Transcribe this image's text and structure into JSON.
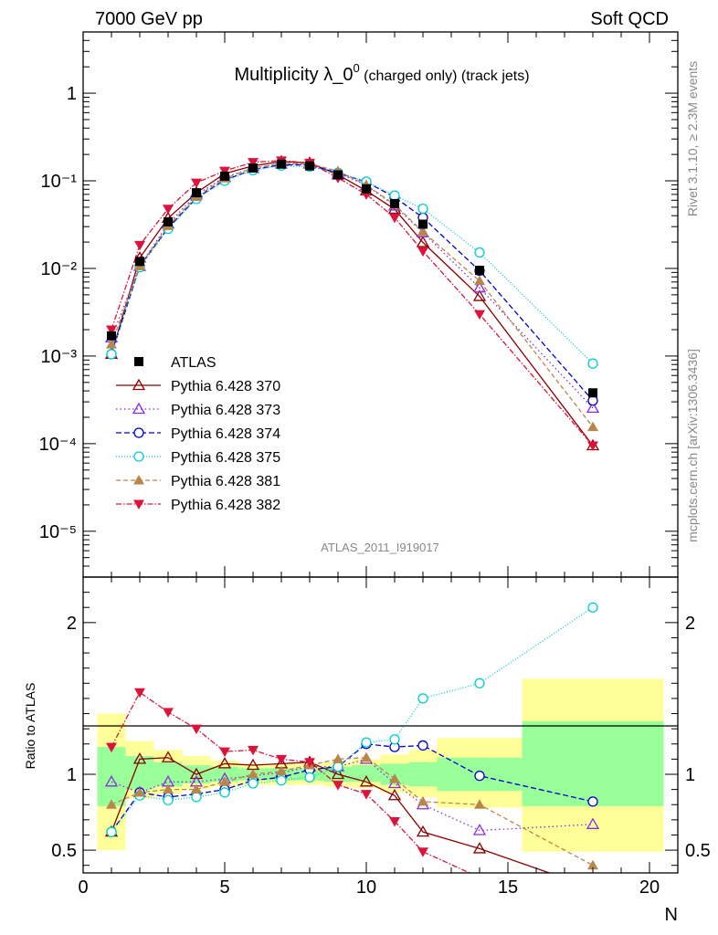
{
  "header": {
    "left": "7000 GeV pp",
    "right": "Soft QCD"
  },
  "side": {
    "rivet": "Rivet 3.1.10, ≥ 2.3M events",
    "mcplots": "mcplots.cern.ch [arXiv:1306.3436]"
  },
  "chart_data": {
    "type": "line",
    "title_main": "Multiplicity λ_0",
    "title_sup": "0",
    "title_sub": " (charged only) (track jets)",
    "analysis_label": "ATLAS_2011_I919017",
    "xlabel": "N",
    "ylabel_ratio": "Ratio to ATLAS",
    "xlim": [
      0,
      21
    ],
    "ylim_main": [
      3e-06,
      5
    ],
    "yscale_main": "log",
    "ylim_ratio": [
      0.35,
      2.3
    ],
    "x_ticks": [
      "0",
      "5",
      "10",
      "15",
      "20"
    ],
    "y_ticks_main": [
      "10⁻⁵",
      "10⁻⁴",
      "10⁻³",
      "10⁻²",
      "10⁻¹",
      "1"
    ],
    "y_ticks_ratio": [
      "0.5",
      "1",
      "2"
    ],
    "legend_position": "middle-left",
    "x": [
      1,
      2,
      3,
      4,
      5,
      6,
      7,
      8,
      9,
      10,
      11,
      12,
      14,
      18
    ],
    "data": {
      "name": "ATLAS",
      "values": [
        0.0017,
        0.012,
        0.034,
        0.073,
        0.113,
        0.14,
        0.155,
        0.148,
        0.117,
        0.081,
        0.055,
        0.032,
        0.0095,
        0.00038
      ]
    },
    "band_bins": [
      {
        "x0": 0.5,
        "x1": 1.5,
        "inner": [
          0.79,
          1.18
        ],
        "outer": [
          0.5,
          1.4
        ]
      },
      {
        "x0": 1.5,
        "x1": 2.5,
        "inner": [
          0.9,
          1.12
        ],
        "outer": [
          0.84,
          1.22
        ]
      },
      {
        "x0": 2.5,
        "x1": 3.5,
        "inner": [
          0.92,
          1.08
        ],
        "outer": [
          0.87,
          1.16
        ]
      },
      {
        "x0": 3.5,
        "x1": 4.5,
        "inner": [
          0.94,
          1.06
        ],
        "outer": [
          0.9,
          1.12
        ]
      },
      {
        "x0": 4.5,
        "x1": 5.5,
        "inner": [
          0.95,
          1.05
        ],
        "outer": [
          0.92,
          1.09
        ]
      },
      {
        "x0": 5.5,
        "x1": 6.5,
        "inner": [
          0.96,
          1.04
        ],
        "outer": [
          0.93,
          1.07
        ]
      },
      {
        "x0": 6.5,
        "x1": 7.5,
        "inner": [
          0.96,
          1.04
        ],
        "outer": [
          0.93,
          1.07
        ]
      },
      {
        "x0": 7.5,
        "x1": 8.5,
        "inner": [
          0.96,
          1.04
        ],
        "outer": [
          0.93,
          1.07
        ]
      },
      {
        "x0": 8.5,
        "x1": 9.5,
        "inner": [
          0.95,
          1.05
        ],
        "outer": [
          0.92,
          1.08
        ]
      },
      {
        "x0": 9.5,
        "x1": 10.5,
        "inner": [
          0.95,
          1.06
        ],
        "outer": [
          0.91,
          1.1
        ]
      },
      {
        "x0": 10.5,
        "x1": 11.5,
        "inner": [
          0.93,
          1.07
        ],
        "outer": [
          0.88,
          1.13
        ]
      },
      {
        "x0": 11.5,
        "x1": 12.5,
        "inner": [
          0.92,
          1.08
        ],
        "outer": [
          0.85,
          1.16
        ]
      },
      {
        "x0": 12.5,
        "x1": 15.5,
        "inner": [
          0.89,
          1.11
        ],
        "outer": [
          0.78,
          1.24
        ]
      },
      {
        "x0": 15.5,
        "x1": 20.5,
        "inner": [
          0.79,
          1.35
        ],
        "outer": [
          0.49,
          1.63
        ]
      }
    ],
    "series": [
      {
        "name": "Pythia 6.428 370",
        "color": "#8b0000",
        "dash": "",
        "marker": "triangle-open",
        "values": [
          0.00105,
          0.0132,
          0.0374,
          0.073,
          0.121,
          0.148,
          0.166,
          0.16,
          0.117,
          0.077,
          0.0475,
          0.0198,
          0.0048,
          9.5e-05
        ],
        "ratio": [
          0.62,
          1.1,
          1.11,
          1.0,
          1.07,
          1.06,
          1.07,
          1.08,
          1.0,
          0.95,
          0.86,
          0.62,
          0.51,
          0.25
        ]
      },
      {
        "name": "Pythia 6.428 373",
        "color": "#8a2be2",
        "dash": "1.5 3",
        "marker": "triangle-open",
        "values": [
          0.00162,
          0.0106,
          0.0323,
          0.0693,
          0.11,
          0.139,
          0.156,
          0.155,
          0.123,
          0.089,
          0.0518,
          0.0256,
          0.006,
          0.000255
        ],
        "ratio": [
          0.95,
          0.88,
          0.95,
          0.95,
          0.97,
          0.99,
          1.01,
          1.05,
          1.05,
          1.1,
          0.94,
          0.8,
          0.63,
          0.67
        ]
      },
      {
        "name": "Pythia 6.428 374",
        "color": "#0000cd",
        "dash": "6 3",
        "marker": "circle-open",
        "values": [
          0.00105,
          0.0106,
          0.0289,
          0.0635,
          0.102,
          0.134,
          0.152,
          0.152,
          0.123,
          0.097,
          0.065,
          0.038,
          0.0094,
          0.00031
        ],
        "ratio": [
          0.62,
          0.88,
          0.85,
          0.87,
          0.9,
          0.96,
          0.98,
          1.03,
          1.05,
          1.2,
          1.18,
          1.19,
          0.99,
          0.82
        ]
      },
      {
        "name": "Pythia 6.428 375",
        "color": "#00ced1",
        "dash": "1 2",
        "marker": "circle-open",
        "values": [
          0.00105,
          0.0103,
          0.0282,
          0.0621,
          0.1,
          0.132,
          0.149,
          0.145,
          0.123,
          0.098,
          0.068,
          0.048,
          0.0152,
          0.00082
        ],
        "ratio": [
          0.62,
          0.86,
          0.83,
          0.85,
          0.88,
          0.94,
          0.96,
          0.98,
          1.05,
          1.21,
          1.23,
          1.5,
          1.6,
          2.1
        ]
      },
      {
        "name": "Pythia 6.428 381",
        "color": "#b8864b",
        "dash": "5 3",
        "marker": "triangle-filled",
        "values": [
          0.00136,
          0.0106,
          0.0306,
          0.0657,
          0.107,
          0.14,
          0.158,
          0.157,
          0.129,
          0.09,
          0.0534,
          0.0262,
          0.0072,
          0.000155
        ],
        "ratio": [
          0.8,
          0.88,
          0.9,
          0.9,
          0.95,
          1.0,
          1.02,
          1.06,
          1.1,
          1.11,
          0.97,
          0.82,
          0.8,
          0.4
        ]
      },
      {
        "name": "Pythia 6.428 382",
        "color": "#dc143c",
        "dash": "6 2 1.5 2",
        "marker": "triangle-down-filled",
        "values": [
          0.002,
          0.0185,
          0.0479,
          0.095,
          0.13,
          0.163,
          0.17,
          0.16,
          0.108,
          0.07,
          0.038,
          0.0157,
          0.003,
          9.5e-05
        ],
        "ratio": [
          1.18,
          1.54,
          1.41,
          1.3,
          1.15,
          1.16,
          1.1,
          1.08,
          0.93,
          0.87,
          0.69,
          0.49,
          0.32,
          0.25
        ]
      }
    ]
  }
}
